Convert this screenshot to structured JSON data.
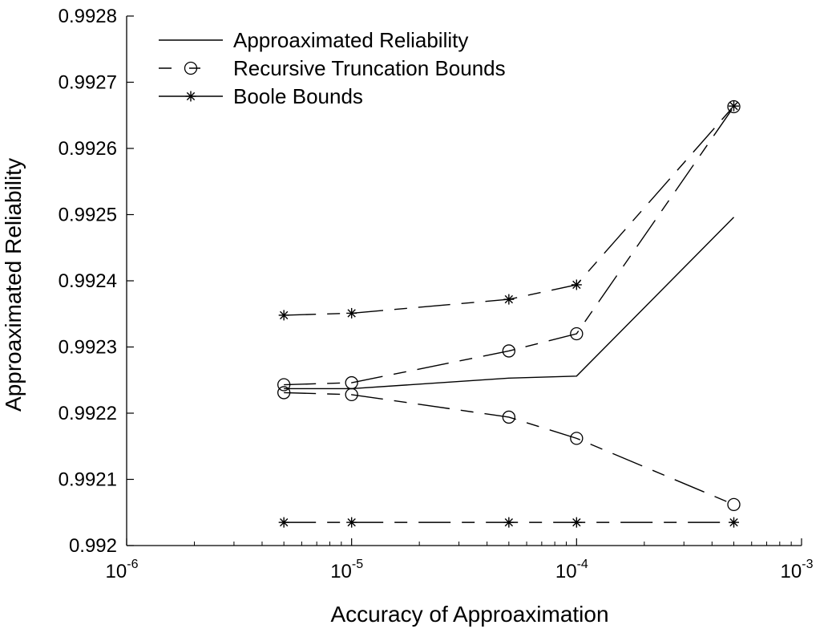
{
  "chart_data": {
    "type": "line",
    "title": "",
    "xlabel": "Accuracy of Approaximation",
    "ylabel": "Approaximated Reliability",
    "x_scale": "log",
    "xlim": [
      1e-06,
      0.001
    ],
    "ylim": [
      0.992,
      0.9928
    ],
    "grid": false,
    "legend_position": "top-left",
    "x_ticks": [
      {
        "value": 1e-06,
        "base": "10",
        "exp": "-6"
      },
      {
        "value": 1e-05,
        "base": "10",
        "exp": "-5"
      },
      {
        "value": 0.0001,
        "base": "10",
        "exp": "-4"
      },
      {
        "value": 0.001,
        "base": "10",
        "exp": "-3"
      }
    ],
    "y_ticks": [
      {
        "value": 0.992,
        "label": "0.992"
      },
      {
        "value": 0.9921,
        "label": "0.9921"
      },
      {
        "value": 0.9922,
        "label": "0.9922"
      },
      {
        "value": 0.9923,
        "label": "0.9923"
      },
      {
        "value": 0.9924,
        "label": "0.9924"
      },
      {
        "value": 0.9925,
        "label": "0.9925"
      },
      {
        "value": 0.9926,
        "label": "0.9926"
      },
      {
        "value": 0.9927,
        "label": "0.9927"
      },
      {
        "value": 0.9928,
        "label": "0.9928"
      }
    ],
    "legend": [
      {
        "label": "Approaximated Reliability",
        "style": "solid",
        "marker": "none"
      },
      {
        "label": "Recursive Truncation Bounds",
        "style": "dashed",
        "marker": "circle"
      },
      {
        "label": "Boole Bounds",
        "style": "solid",
        "marker": "star"
      }
    ],
    "series": [
      {
        "name": "Approaximated Reliability",
        "style": "solid",
        "marker": "none",
        "x": [
          5e-06,
          1e-05,
          5e-05,
          0.0001,
          0.0005
        ],
        "y": [
          0.992237,
          0.992237,
          0.992253,
          0.992256,
          0.992496
        ]
      },
      {
        "name": "Recursive Truncation Bounds",
        "style": "dashed",
        "marker": "circle",
        "bound": "upper",
        "x": [
          5e-06,
          1e-05,
          5e-05,
          0.0001,
          0.0005
        ],
        "y": [
          0.992243,
          0.992246,
          0.992294,
          0.99232,
          0.992663
        ]
      },
      {
        "name": "Recursive Truncation Bounds",
        "style": "dashed",
        "marker": "circle",
        "bound": "lower",
        "x": [
          5e-06,
          1e-05,
          5e-05,
          0.0001,
          0.0005
        ],
        "y": [
          0.992231,
          0.992228,
          0.992194,
          0.992162,
          0.992062
        ]
      },
      {
        "name": "Boole Bounds",
        "style": "dashed",
        "marker": "star",
        "bound": "upper",
        "x": [
          5e-06,
          1e-05,
          5e-05,
          0.0001,
          0.0005
        ],
        "y": [
          0.992348,
          0.992351,
          0.992372,
          0.992394,
          0.992664
        ]
      },
      {
        "name": "Boole Bounds",
        "style": "dashed",
        "marker": "star",
        "bound": "lower",
        "x": [
          5e-06,
          1e-05,
          5e-05,
          0.0001,
          0.0005
        ],
        "y": [
          0.992035,
          0.992035,
          0.992035,
          0.992035,
          0.992035
        ]
      }
    ]
  }
}
